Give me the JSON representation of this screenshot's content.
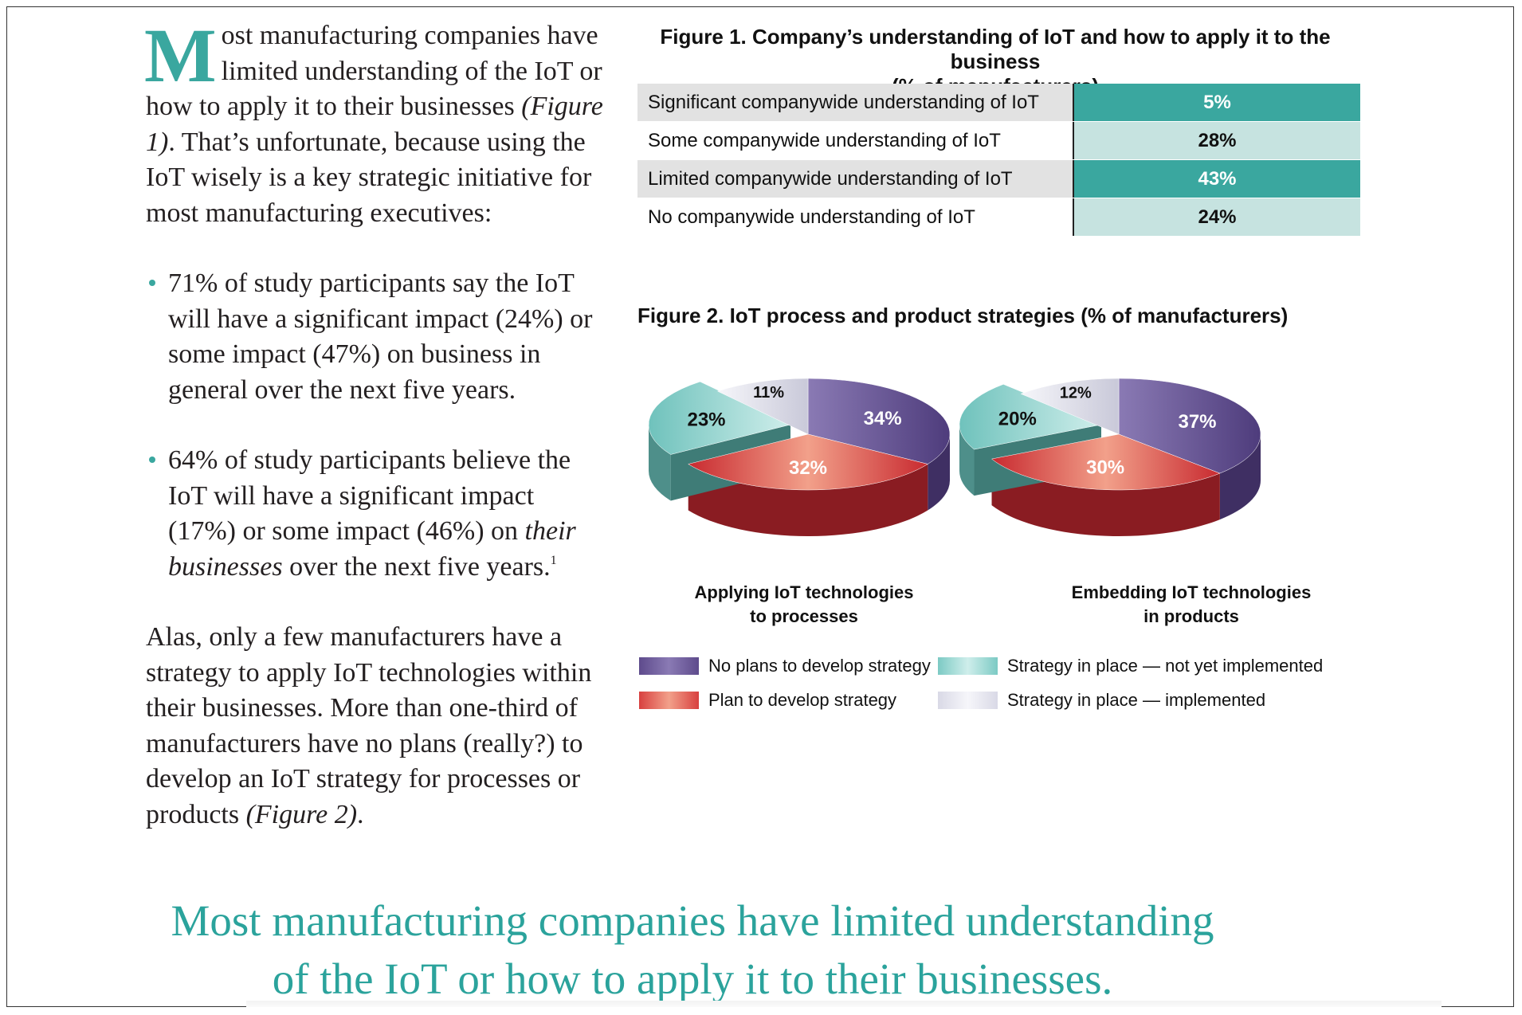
{
  "intro": {
    "dropcap": "M",
    "text_start": "ost manufacturing companies have limited understanding of the IoT or how to apply it to their businesses ",
    "figure_ref": "(Figure 1)",
    "text_end": ". That’s unfortunate, because using the IoT wisely is a key strategic initiative for most manufacturing executives:"
  },
  "bullets": [
    {
      "text": "71% of study participants say the IoT will have a significant impact (24%) or some impact (47%) on business in general over the next five years."
    },
    {
      "text_start": "64% of study participants believe the IoT will have a significant impact (17%) or some impact (46%) on ",
      "emphasis": "their businesses",
      "text_end": " over the next five years.",
      "footnote": "1"
    }
  ],
  "closing": {
    "text_start": "Alas, only a few manufacturers have a strategy to apply IoT technologies within their businesses. More than one-third of manufacturers have no plans (really?) to develop an IoT strategy for processes or products ",
    "figure_ref": "(Figure 2)",
    "text_end": "."
  },
  "figure1": {
    "title_line1": "Figure 1. Company’s understanding of IoT and how to apply it to the business",
    "title_line2": "(% of manufacturers)",
    "rows": [
      {
        "label": "Significant companywide understanding of IoT",
        "value": "5%"
      },
      {
        "label": "Some companywide understanding of IoT",
        "value": "28%"
      },
      {
        "label": "Limited companywide understanding of IoT",
        "value": "43%"
      },
      {
        "label": "No companywide understanding of IoT",
        "value": "24%"
      }
    ]
  },
  "chart_data": {
    "type": "pie",
    "title": "Figure 2. IoT process and product strategies (% of manufacturers)",
    "series_names": [
      "No plans to develop strategy",
      "Plan to develop strategy",
      "Strategy in place — not yet implemented",
      "Strategy in place — implemented"
    ],
    "colors": [
      "#5e4b8c",
      "#d8403f",
      "#7ccac4",
      "#dcdce8"
    ],
    "pies": [
      {
        "caption_line1": "Applying IoT technologies",
        "caption_line2": "to processes",
        "values": [
          34,
          32,
          23,
          11
        ],
        "labels": [
          "34%",
          "32%",
          "23%",
          "11%"
        ]
      },
      {
        "caption_line1": "Embedding IoT technologies",
        "caption_line2": "in products",
        "values": [
          37,
          30,
          20,
          12
        ],
        "labels": [
          "37%",
          "30%",
          "20%",
          "12%"
        ]
      }
    ],
    "legend": [
      {
        "label": "No plans to develop strategy",
        "color": "#5e4b8c"
      },
      {
        "label": "Plan to develop strategy",
        "color": "#d8403f"
      },
      {
        "label": "Strategy in place — not yet implemented",
        "color": "#7ccac4"
      },
      {
        "label": "Strategy in place — implemented",
        "color": "#dcdce8"
      }
    ]
  },
  "pull_quote": {
    "line1": "Most manufacturing companies have limited understanding",
    "line2": "of the IoT or how to apply it to their businesses."
  }
}
